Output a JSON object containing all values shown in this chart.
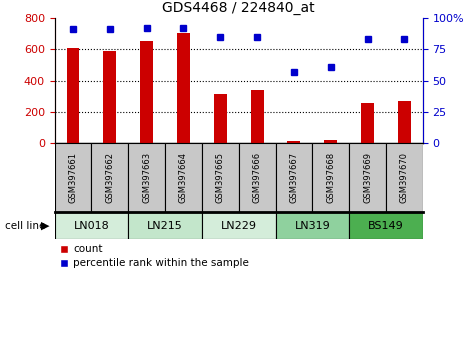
{
  "title": "GDS4468 / 224840_at",
  "samples": [
    "GSM397661",
    "GSM397662",
    "GSM397663",
    "GSM397664",
    "GSM397665",
    "GSM397666",
    "GSM397667",
    "GSM397668",
    "GSM397669",
    "GSM397670"
  ],
  "counts": [
    605,
    590,
    650,
    705,
    315,
    340,
    15,
    20,
    260,
    270
  ],
  "percentiles": [
    91,
    91,
    92,
    92,
    85,
    85,
    57,
    61,
    83,
    83
  ],
  "cell_lines": [
    {
      "label": "LN018",
      "start": 0,
      "end": 2,
      "color": "#d4edda"
    },
    {
      "label": "LN215",
      "start": 2,
      "end": 4,
      "color": "#c3e6cb"
    },
    {
      "label": "LN229",
      "start": 4,
      "end": 6,
      "color": "#d4edda"
    },
    {
      "label": "LN319",
      "start": 6,
      "end": 8,
      "color": "#8fd19e"
    },
    {
      "label": "BS149",
      "start": 8,
      "end": 10,
      "color": "#4caf50"
    }
  ],
  "bar_color": "#cc0000",
  "dot_color": "#0000cc",
  "left_ylim": [
    0,
    800
  ],
  "right_ylim": [
    0,
    100
  ],
  "left_yticks": [
    0,
    200,
    400,
    600,
    800
  ],
  "right_yticks": [
    0,
    25,
    50,
    75,
    100
  ],
  "right_yticklabels": [
    "0",
    "25",
    "50",
    "75",
    "100%"
  ],
  "gridlines": [
    200,
    400,
    600
  ],
  "sample_box_color": "#c8c8c8",
  "cell_line_label": "cell line"
}
